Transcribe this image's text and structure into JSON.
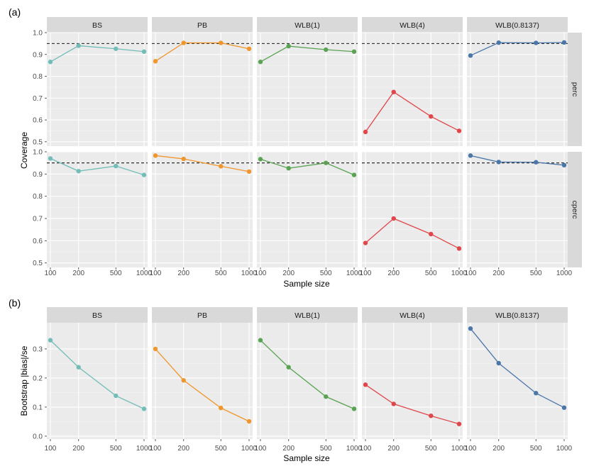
{
  "chart_data": [
    {
      "tag": "(a)",
      "type": "line",
      "xlabel": "Sample size",
      "ylabel": "Coverage",
      "x": [
        100,
        200,
        500,
        1000
      ],
      "x_tick_labels": [
        "100",
        "200",
        "500",
        "1000"
      ],
      "xscale": "log",
      "ylim": [
        0.48,
        1.0
      ],
      "yticks": [
        0.5,
        0.6,
        0.7,
        0.8,
        0.9,
        1.0
      ],
      "ytick_labels": [
        "0.5",
        "0.6",
        "0.7",
        "0.8",
        "0.9",
        "1.0"
      ],
      "reference_line": 0.95,
      "facet_columns": [
        "BS",
        "PB",
        "WLB(1)",
        "WLB(4)",
        "WLB(0.8137)"
      ],
      "facet_rows": [
        "perc",
        "cperc"
      ],
      "colors": [
        "#72bdb7",
        "#f0962e",
        "#5aa353",
        "#e0474c",
        "#4a76a8"
      ],
      "series": [
        {
          "row": "perc",
          "column": "BS",
          "values": [
            0.866,
            0.94,
            0.926,
            0.913
          ]
        },
        {
          "row": "perc",
          "column": "PB",
          "values": [
            0.869,
            0.953,
            0.953,
            0.926
          ]
        },
        {
          "row": "perc",
          "column": "WLB(1)",
          "values": [
            0.866,
            0.938,
            0.922,
            0.913
          ]
        },
        {
          "row": "perc",
          "column": "WLB(4)",
          "values": [
            0.545,
            0.728,
            0.616,
            0.55
          ]
        },
        {
          "row": "perc",
          "column": "WLB(0.8137)",
          "values": [
            0.895,
            0.954,
            0.953,
            0.955
          ]
        },
        {
          "row": "cperc",
          "column": "BS",
          "values": [
            0.97,
            0.913,
            0.936,
            0.896
          ]
        },
        {
          "row": "cperc",
          "column": "PB",
          "values": [
            0.983,
            0.968,
            0.935,
            0.911
          ]
        },
        {
          "row": "cperc",
          "column": "WLB(1)",
          "values": [
            0.967,
            0.926,
            0.95,
            0.896
          ]
        },
        {
          "row": "cperc",
          "column": "WLB(4)",
          "values": [
            0.59,
            0.7,
            0.63,
            0.565
          ]
        },
        {
          "row": "cperc",
          "column": "WLB(0.8137)",
          "values": [
            0.983,
            0.954,
            0.953,
            0.94
          ]
        }
      ]
    },
    {
      "tag": "(b)",
      "type": "line",
      "xlabel": "Sample size",
      "ylabel": "Bootstrap |bias|/se",
      "x": [
        100,
        200,
        500,
        1000
      ],
      "x_tick_labels": [
        "100",
        "200",
        "500",
        "1000"
      ],
      "xscale": "log",
      "ylim": [
        -0.01,
        0.39
      ],
      "yticks": [
        0.0,
        0.1,
        0.2,
        0.3
      ],
      "ytick_labels": [
        "0.0",
        "0.1",
        "0.2",
        "0.3"
      ],
      "facet_columns": [
        "BS",
        "PB",
        "WLB(1)",
        "WLB(4)",
        "WLB(0.8137)"
      ],
      "colors": [
        "#72bdb7",
        "#f0962e",
        "#5aa353",
        "#e0474c",
        "#4a76a8"
      ],
      "series": [
        {
          "column": "BS",
          "values": [
            0.33,
            0.237,
            0.139,
            0.094
          ]
        },
        {
          "column": "PB",
          "values": [
            0.3,
            0.192,
            0.097,
            0.051
          ]
        },
        {
          "column": "WLB(1)",
          "values": [
            0.33,
            0.237,
            0.136,
            0.094
          ]
        },
        {
          "column": "WLB(4)",
          "values": [
            0.177,
            0.111,
            0.07,
            0.042
          ]
        },
        {
          "column": "WLB(0.8137)",
          "values": [
            0.37,
            0.251,
            0.148,
            0.098
          ]
        }
      ]
    }
  ]
}
